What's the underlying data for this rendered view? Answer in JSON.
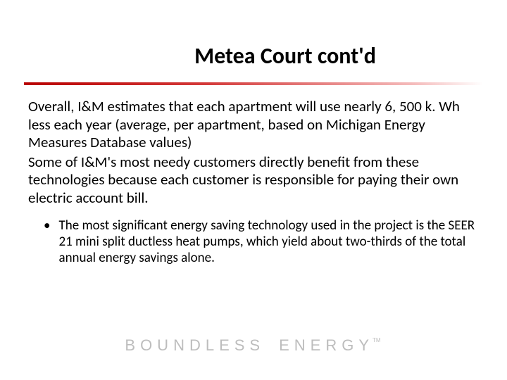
{
  "title": "Metea Court cont'd",
  "paragraphs": [
    "Overall, I&M estimates that each apartment will use nearly 6, 500 k. Wh less each year (average, per apartment, based on Michigan Energy Measures Database values)",
    "Some of I&M's most needy customers directly benefit from these technologies because each customer is responsible for paying their own electric account bill."
  ],
  "bullet": "The most significant energy saving technology used in the project is the SEER 21 mini split ductless heat pumps, which yield about two-thirds of the total annual energy savings alone.",
  "brand": {
    "word1": "BOUNDLESS",
    "word2": "ENERGY",
    "tm": "TM"
  },
  "colors": {
    "divider_start": "#b80000",
    "divider_end": "#ffffff",
    "brand_text": "#bdbdbd",
    "background": "#ffffff",
    "text": "#000000"
  },
  "typography": {
    "title_fontsize": 32,
    "body_fontsize": 21,
    "bullet_fontsize": 19,
    "brand_fontsize": 22,
    "brand_letterspacing": 7
  }
}
